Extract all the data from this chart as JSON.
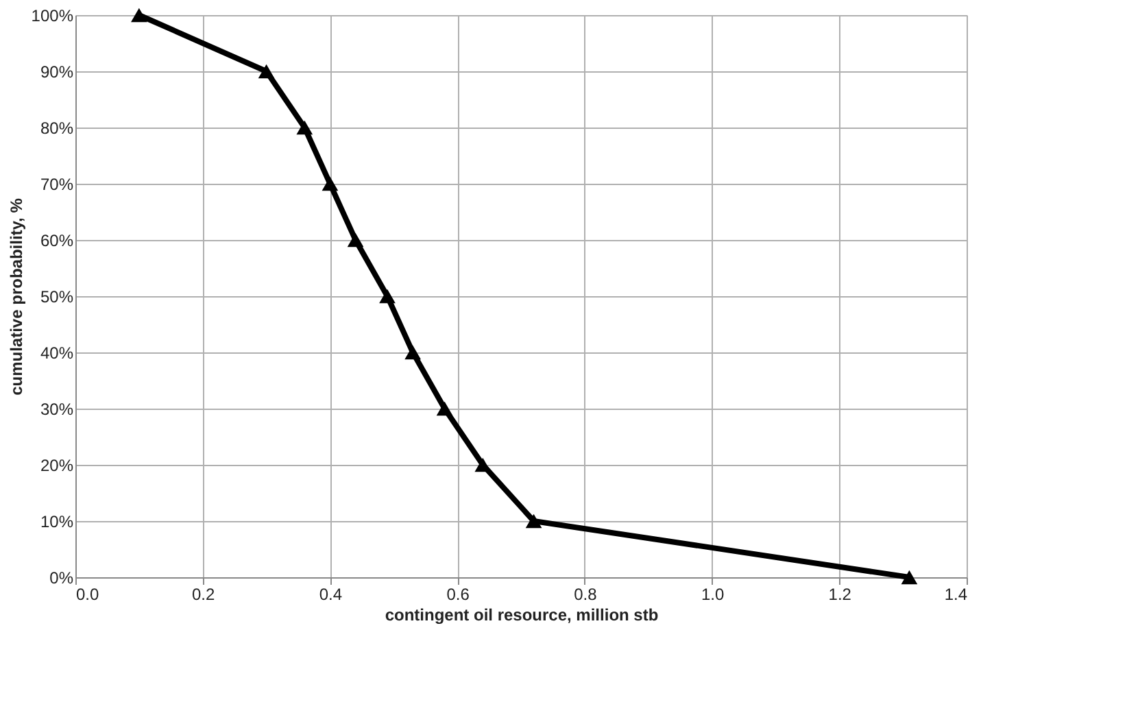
{
  "chart_data": {
    "type": "line",
    "xlabel": "contingent oil resource, million stb",
    "ylabel": "cumulative probability, %",
    "series": [
      {
        "color": "#000000",
        "x": [
          0.1,
          0.3,
          0.36,
          0.4,
          0.44,
          0.49,
          0.53,
          0.58,
          0.64,
          0.72,
          1.31
        ],
        "values": [
          100,
          90,
          80,
          70,
          60,
          50,
          40,
          30,
          20,
          10,
          0
        ]
      }
    ],
    "xlim": [
      0,
      1.4
    ],
    "xticks": [
      {
        "value": 0,
        "label": "0.0"
      },
      0.2,
      0.4,
      0.6,
      0.8,
      {
        "value": 1,
        "label": "1.0"
      },
      1.2,
      1.4
    ],
    "ylim": [
      0,
      100
    ],
    "yticks": [
      {
        "value": 0,
        "label": "0%"
      },
      {
        "value": 10,
        "label": "10%"
      },
      {
        "value": 20,
        "label": "20%"
      },
      {
        "value": 30,
        "label": "30%"
      },
      {
        "value": 40,
        "label": "40%"
      },
      {
        "value": 50,
        "label": "50%"
      },
      {
        "value": 60,
        "label": "60%"
      },
      {
        "value": 70,
        "label": "70%"
      },
      {
        "value": 80,
        "label": "80%"
      },
      {
        "value": 90,
        "label": "90%"
      },
      {
        "value": 100,
        "label": "100%"
      }
    ],
    "grid": true,
    "marker": "triangle",
    "line_style": "solid"
  }
}
